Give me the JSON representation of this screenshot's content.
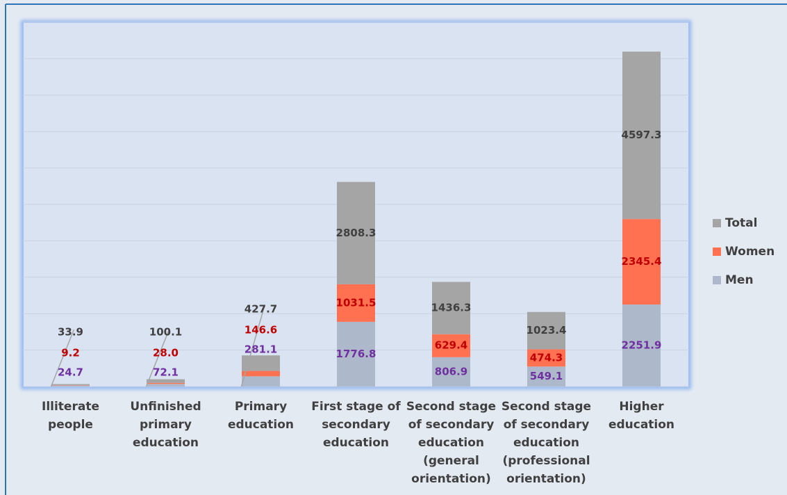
{
  "chart_data": {
    "type": "stacked_bar",
    "categories": [
      "Illiterate\npeople",
      "Unfinished\nprimary\neducation",
      "Primary\neducation",
      "First stage of\nsecondary\neducation",
      "Second stage\nof secondary\neducation\n(general\norientation)",
      "Second stage\nof secondary\neducation\n(professional\norientation)",
      "Higher\neducation"
    ],
    "series": [
      {
        "name": "Men",
        "color": "#adb9ca",
        "label_color": "#7030a0",
        "values": [
          24.7,
          72.1,
          281.1,
          1776.8,
          806.9,
          549.1,
          2251.9
        ]
      },
      {
        "name": "Women",
        "color": "#ff7150",
        "label_color": "#c00000",
        "values": [
          9.2,
          28.0,
          146.6,
          1031.5,
          629.4,
          474.3,
          2345.4
        ],
        "value_labels": [
          "9.2",
          "28.0",
          "146.6",
          "1031.5",
          "629.4",
          "474.3",
          "2345.4"
        ]
      },
      {
        "name": "Total",
        "color": "#a5a5a5",
        "label_color": "#404040",
        "values": [
          33.9,
          100.1,
          427.7,
          2808.3,
          1436.3,
          1023.4,
          4597.3
        ]
      }
    ],
    "ylim": [
      0,
      10000
    ],
    "yticks": [
      0,
      1000,
      2000,
      3000,
      4000,
      5000,
      6000,
      7000,
      8000,
      9000,
      10000
    ],
    "grid": true,
    "legend": "right"
  }
}
